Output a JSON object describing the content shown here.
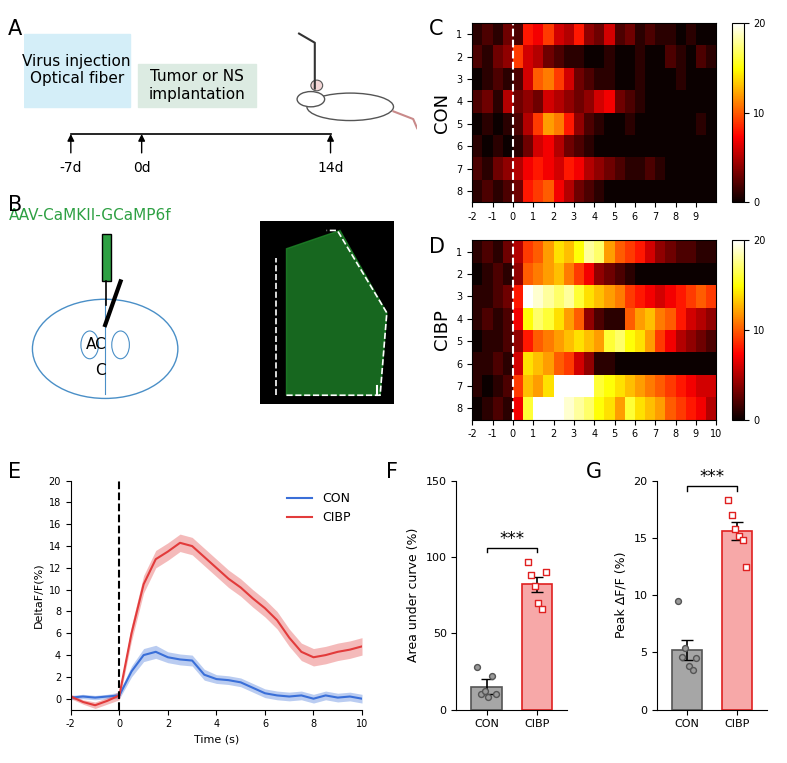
{
  "panel_labels": [
    "A",
    "B",
    "C",
    "D",
    "E",
    "F",
    "G"
  ],
  "timeline": {
    "steps": [
      "Virus injection\nOptical fiber",
      "Tumor or NS\nimplantation"
    ],
    "ticks": [
      "-7d",
      "0d",
      "14d"
    ]
  },
  "schematic": {
    "virus": "AAV-CaMKII-GCaMP6f",
    "region": [
      "AC",
      "C"
    ]
  },
  "chart_data": [
    {
      "type": "heatmap",
      "ylabel": "CON",
      "rows": [
        "1",
        "2",
        "3",
        "4",
        "5",
        "6",
        "7",
        "8"
      ],
      "xlim": [
        -2,
        10
      ],
      "xticks": [
        -2,
        -1,
        0,
        1,
        2,
        3,
        4,
        5,
        6,
        7,
        8,
        9
      ],
      "vline": 0,
      "colorbar_range": [
        0,
        20
      ],
      "colorbar_ticks": [
        0,
        10,
        20
      ],
      "cells": [
        [
          1,
          2,
          1,
          3,
          2,
          8,
          7,
          9,
          6,
          5,
          8,
          4,
          3,
          6,
          2,
          3,
          1,
          2,
          1,
          1,
          0,
          1,
          0,
          0
        ],
        [
          2,
          1,
          3,
          4,
          9,
          6,
          5,
          3,
          2,
          1,
          1,
          0,
          0,
          1,
          0,
          0,
          1,
          0,
          0,
          2,
          1,
          0,
          2,
          1
        ],
        [
          0,
          1,
          2,
          1,
          2,
          6,
          10,
          11,
          9,
          6,
          3,
          2,
          1,
          1,
          0,
          0,
          1,
          0,
          0,
          0,
          1,
          0,
          0,
          0
        ],
        [
          2,
          3,
          1,
          5,
          3,
          4,
          3,
          6,
          5,
          4,
          3,
          4,
          6,
          7,
          3,
          2,
          1,
          0,
          0,
          0,
          0,
          0,
          0,
          0
        ],
        [
          0,
          1,
          0,
          1,
          2,
          5,
          9,
          12,
          11,
          8,
          4,
          2,
          1,
          0,
          0,
          1,
          0,
          0,
          0,
          0,
          0,
          0,
          1,
          0
        ],
        [
          1,
          0,
          1,
          0,
          1,
          3,
          6,
          7,
          5,
          3,
          2,
          1,
          0,
          0,
          0,
          0,
          0,
          0,
          0,
          0,
          0,
          0,
          0,
          0
        ],
        [
          2,
          1,
          3,
          4,
          5,
          7,
          8,
          7,
          6,
          8,
          7,
          5,
          4,
          3,
          2,
          1,
          1,
          2,
          1,
          0,
          0,
          0,
          0,
          0
        ],
        [
          1,
          2,
          1,
          2,
          3,
          8,
          9,
          10,
          7,
          5,
          3,
          2,
          1,
          0,
          0,
          0,
          0,
          0,
          0,
          0,
          0,
          0,
          0,
          0
        ]
      ]
    },
    {
      "type": "heatmap",
      "ylabel": "CIBP",
      "rows": [
        "1",
        "2",
        "3",
        "4",
        "5",
        "6",
        "7",
        "8"
      ],
      "xlim": [
        -2,
        10
      ],
      "xticks": [
        -2,
        -1,
        0,
        1,
        2,
        3,
        4,
        5,
        6,
        7,
        8,
        9,
        10
      ],
      "vline": 0,
      "colorbar_range": [
        0,
        20
      ],
      "colorbar_ticks": [
        0,
        10,
        20
      ],
      "cells": [
        [
          1,
          2,
          1,
          3,
          5,
          9,
          10,
          12,
          14,
          13,
          15,
          18,
          17,
          12,
          10,
          9,
          8,
          6,
          4,
          3,
          2,
          2,
          1,
          1
        ],
        [
          0,
          1,
          2,
          1,
          4,
          10,
          11,
          12,
          13,
          11,
          9,
          7,
          4,
          3,
          2,
          1,
          0,
          0,
          0,
          0,
          0,
          0,
          0,
          0
        ],
        [
          1,
          1,
          2,
          3,
          8,
          20,
          19,
          18,
          17,
          18,
          16,
          14,
          13,
          12,
          11,
          9,
          8,
          7,
          6,
          7,
          8,
          9,
          10,
          9
        ],
        [
          1,
          2,
          1,
          2,
          7,
          15,
          17,
          16,
          14,
          12,
          10,
          4,
          2,
          1,
          1,
          10,
          12,
          13,
          11,
          10,
          8,
          6,
          5,
          4
        ],
        [
          0,
          1,
          1,
          2,
          4,
          8,
          10,
          11,
          12,
          13,
          14,
          13,
          12,
          16,
          17,
          15,
          14,
          12,
          9,
          7,
          5,
          4,
          3,
          2
        ],
        [
          1,
          1,
          2,
          1,
          6,
          14,
          13,
          12,
          10,
          9,
          6,
          4,
          1,
          1,
          0,
          0,
          0,
          0,
          0,
          0,
          0,
          0,
          0,
          0
        ],
        [
          1,
          0,
          1,
          2,
          9,
          13,
          12,
          14,
          20,
          20,
          20,
          20,
          16,
          15,
          14,
          13,
          12,
          11,
          10,
          9,
          8,
          7,
          6,
          6
        ],
        [
          0,
          1,
          2,
          1,
          7,
          16,
          20,
          20,
          20,
          19,
          18,
          17,
          15,
          14,
          12,
          16,
          14,
          13,
          12,
          10,
          9,
          8,
          7,
          5
        ]
      ]
    },
    {
      "type": "line",
      "xlabel": "Time (s)",
      "ylabel": "DeltaF/F(%)",
      "x": [
        -2,
        -1.5,
        -1,
        -0.5,
        0,
        0.5,
        1,
        1.5,
        2,
        2.5,
        3,
        3.5,
        4,
        4.5,
        5,
        5.5,
        6,
        6.5,
        7,
        7.5,
        8,
        8.5,
        9,
        9.5,
        10
      ],
      "xlim": [
        -2,
        10
      ],
      "xticks": [
        -2,
        0,
        2,
        4,
        6,
        8,
        10
      ],
      "ylim": [
        -1,
        20
      ],
      "yticks": [
        0,
        2,
        4,
        6,
        8,
        10,
        12,
        14,
        16,
        18,
        20
      ],
      "legend": "upper right",
      "vline": 0,
      "series": [
        {
          "name": "CON",
          "color": "#3a6fd8",
          "values": [
            0.1,
            0.2,
            0.1,
            0.2,
            0.3,
            2.5,
            4.0,
            4.3,
            3.8,
            3.6,
            3.5,
            2.2,
            1.8,
            1.7,
            1.5,
            1.0,
            0.5,
            0.3,
            0.2,
            0.3,
            0.0,
            0.3,
            0.1,
            0.2,
            0.0
          ],
          "errors": [
            0.2,
            0.2,
            0.2,
            0.2,
            0.3,
            0.5,
            0.6,
            0.6,
            0.5,
            0.5,
            0.5,
            0.5,
            0.4,
            0.4,
            0.4,
            0.4,
            0.4,
            0.4,
            0.4,
            0.4,
            0.4,
            0.4,
            0.4,
            0.4,
            0.4
          ]
        },
        {
          "name": "CIBP",
          "color": "#e23b3b",
          "values": [
            0.2,
            -0.3,
            -0.6,
            -0.2,
            0.3,
            6.0,
            10.5,
            12.8,
            13.5,
            14.3,
            14.0,
            13.0,
            12.0,
            11.0,
            10.2,
            9.2,
            8.3,
            7.2,
            5.6,
            4.3,
            3.8,
            4.0,
            4.3,
            4.5,
            4.8
          ],
          "errors": [
            0.2,
            0.2,
            0.3,
            0.3,
            0.4,
            0.7,
            0.8,
            0.8,
            0.8,
            0.8,
            0.8,
            0.8,
            0.8,
            0.8,
            0.8,
            0.8,
            0.8,
            0.8,
            0.8,
            0.8,
            0.8,
            0.8,
            0.8,
            0.8,
            0.8
          ]
        }
      ]
    },
    {
      "type": "bar",
      "ylabel": "Area under curve (%)",
      "categories": [
        "CON",
        "CIBP"
      ],
      "values": [
        15,
        82
      ],
      "errors": [
        5,
        5
      ],
      "points": [
        [
          28,
          10,
          12,
          8,
          22,
          10
        ],
        [
          97,
          88,
          81,
          70,
          66,
          90
        ]
      ],
      "colors": [
        "#a6a6a6",
        "#f7a8a8"
      ],
      "ylim": [
        0,
        150
      ],
      "yticks": [
        0,
        50,
        100,
        150
      ],
      "annotation": "***"
    },
    {
      "type": "bar",
      "ylabel": "Peak ΔF/F (%)",
      "categories": [
        "CON",
        "CIBP"
      ],
      "values": [
        5.2,
        15.6
      ],
      "errors": [
        0.9,
        0.8
      ],
      "points": [
        [
          9.5,
          4.6,
          5.4,
          3.8,
          3.5,
          4.5
        ],
        [
          18.3,
          17.0,
          15.8,
          15.2,
          14.8,
          12.5
        ]
      ],
      "colors": [
        "#a6a6a6",
        "#f7a8a8"
      ],
      "ylim": [
        0,
        20
      ],
      "yticks": [
        0,
        5,
        10,
        15,
        20
      ],
      "annotation": "***"
    }
  ]
}
